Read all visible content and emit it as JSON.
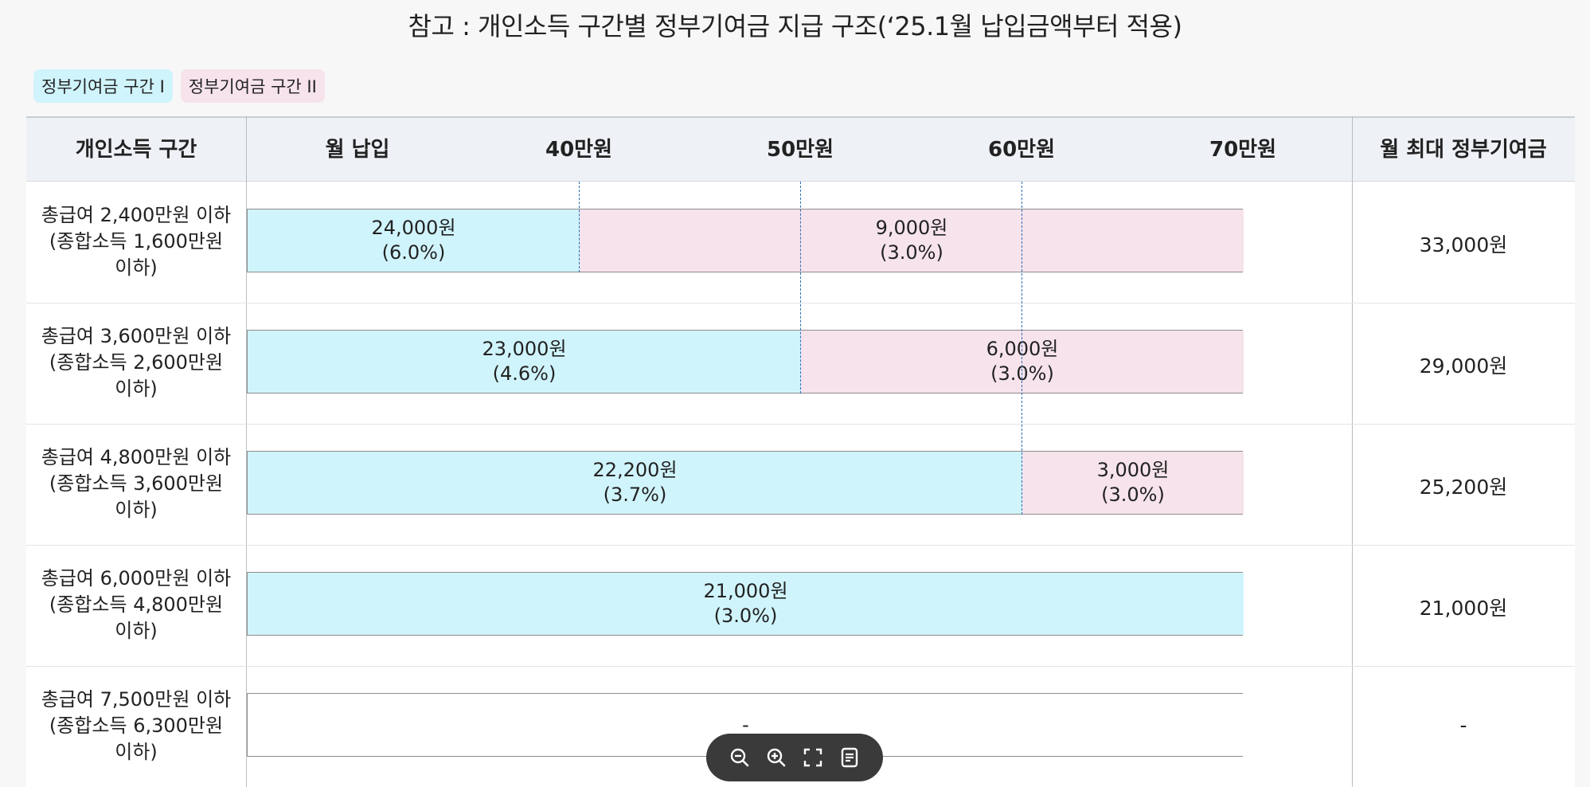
{
  "title": "참고 : 개인소득 구간별 정부기여금 지급 구조(‘25.1월 납입금액부터 적용)",
  "legend": [
    {
      "label": "정부기여금 구간 I",
      "color": "#d0f4fc"
    },
    {
      "label": "정부기여금 구간 II",
      "color": "#f6e3ec"
    }
  ],
  "chart_data": {
    "type": "bar",
    "orientation": "horizontal-stacked",
    "title": "참고 : 개인소득 구간별 정부기여금 지급 구조(‘25.1월 납입금액부터 적용)",
    "header": {
      "col_income": "개인소득 구간",
      "col_monthly": "월 납입",
      "col_max": "월 최대 정부기여금"
    },
    "x_ticks": [
      {
        "value": 40,
        "label": "40만원"
      },
      {
        "value": 50,
        "label": "50만원"
      },
      {
        "value": 60,
        "label": "60만원"
      },
      {
        "value": 70,
        "label": "70만원"
      }
    ],
    "xlim": [
      25,
      70
    ],
    "rows": [
      {
        "label_lines": [
          "총급여 2,400만원 이하",
          "(종합소득 1,600만원",
          "이하)"
        ],
        "segments": [
          {
            "tier": 1,
            "from": 25,
            "to": 40,
            "amount": "24,000원",
            "rate": "(6.0%)"
          },
          {
            "tier": 2,
            "from": 40,
            "to": 70,
            "amount": "9,000원",
            "rate": "(3.0%)"
          }
        ],
        "max": "33,000원"
      },
      {
        "label_lines": [
          "총급여 3,600만원 이하",
          "(종합소득 2,600만원",
          "이하)"
        ],
        "segments": [
          {
            "tier": 1,
            "from": 25,
            "to": 50,
            "amount": "23,000원",
            "rate": "(4.6%)"
          },
          {
            "tier": 2,
            "from": 50,
            "to": 70,
            "amount": "6,000원",
            "rate": "(3.0%)"
          }
        ],
        "max": "29,000원"
      },
      {
        "label_lines": [
          "총급여 4,800만원 이하",
          "(종합소득 3,600만원",
          "이하)"
        ],
        "segments": [
          {
            "tier": 1,
            "from": 25,
            "to": 60,
            "amount": "22,200원",
            "rate": "(3.7%)"
          },
          {
            "tier": 2,
            "from": 60,
            "to": 70,
            "amount": "3,000원",
            "rate": "(3.0%)"
          }
        ],
        "max": "25,200원"
      },
      {
        "label_lines": [
          "총급여 6,000만원 이하",
          "(종합소득 4,800만원",
          "이하)"
        ],
        "segments": [
          {
            "tier": 1,
            "from": 25,
            "to": 70,
            "amount": "21,000원",
            "rate": "(3.0%)"
          }
        ],
        "max": "21,000원"
      },
      {
        "label_lines": [
          "총급여 7,500만원 이하",
          "(종합소득 6,300만원",
          "이하)"
        ],
        "segments": [
          {
            "tier": 0,
            "from": 25,
            "to": 70,
            "amount": "-",
            "rate": ""
          }
        ],
        "max": "-"
      }
    ]
  },
  "toolbar": {
    "icons": [
      "zoom-out-icon",
      "zoom-in-icon",
      "fullscreen-icon",
      "document-icon"
    ]
  }
}
